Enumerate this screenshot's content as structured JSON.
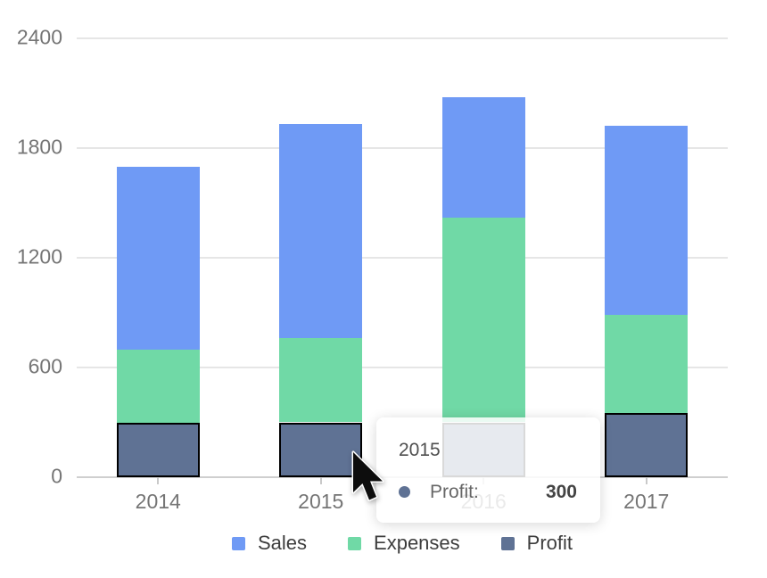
{
  "chart_data": {
    "type": "bar",
    "stacked": true,
    "title": "",
    "xlabel": "",
    "ylabel": "",
    "categories": [
      "2014",
      "2015",
      "2016",
      "2017"
    ],
    "series": [
      {
        "name": "Sales",
        "color": "#6f9af5",
        "values": [
          1000,
          1170,
          660,
          1030
        ]
      },
      {
        "name": "Expenses",
        "color": "#70d9a6",
        "values": [
          400,
          460,
          1120,
          540
        ]
      },
      {
        "name": "Profit",
        "color": "#5f7294",
        "values": [
          300,
          300,
          300,
          350
        ],
        "border_color": "#000000"
      }
    ],
    "stack_bottom_to_top": [
      "Profit",
      "Expenses",
      "Sales"
    ],
    "y_axis": {
      "min": 0,
      "max": 2400,
      "ticks": [
        0,
        600,
        1200,
        1800,
        2400
      ],
      "grid": true
    },
    "legend": {
      "position": "bottom",
      "items": [
        "Sales",
        "Expenses",
        "Profit"
      ]
    }
  },
  "tooltip": {
    "title": "2015",
    "series_label": "Profit:",
    "value": "300",
    "marker_color": "#5f7294"
  },
  "colors": {
    "background": "#ffffff",
    "grid_line": "#e6e6e6",
    "axis_line": "#cfcfcf",
    "axis_text": "#757575",
    "legend_text": "#3d3d3d"
  }
}
